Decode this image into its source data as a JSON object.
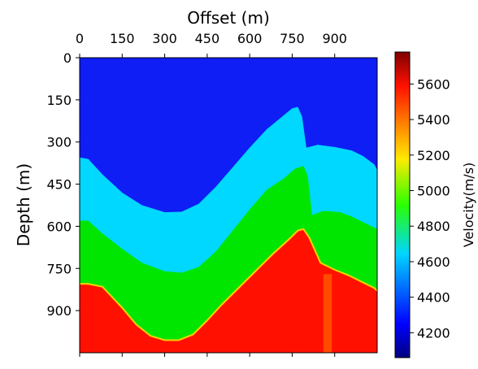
{
  "chart_data": {
    "type": "heatmap",
    "xlabel": "Offset (m)",
    "ylabel": "Depth (m)",
    "x_ticks": [
      0,
      150,
      300,
      450,
      600,
      750,
      900
    ],
    "y_ticks": [
      0,
      150,
      300,
      450,
      600,
      750,
      900
    ],
    "xlim": [
      0,
      1050
    ],
    "ylim": [
      1050,
      0
    ],
    "x_axis_position": "top",
    "colorbar": {
      "label": "Velocity(m/s)",
      "min": 4060,
      "max": 5780,
      "ticks": [
        4200,
        4400,
        4600,
        4800,
        5000,
        5200,
        5400,
        5600
      ],
      "colormap": "jet"
    },
    "layers": [
      {
        "velocity": 4100,
        "color": "#0e1ef5"
      },
      {
        "velocity": 4500,
        "color": "#00d8ff"
      },
      {
        "velocity": 5000,
        "color": "#00e600"
      },
      {
        "velocity": 5750,
        "color": "#ff1000"
      }
    ],
    "interfaces": [
      {
        "x": [
          0,
          30,
          80,
          150,
          220,
          300,
          360,
          420,
          480,
          540,
          600,
          660,
          720,
          750,
          770,
          785,
          800,
          840,
          900,
          960,
          1000,
          1040,
          1050
        ],
        "z": [
          355,
          360,
          415,
          480,
          525,
          550,
          548,
          520,
          460,
          390,
          320,
          255,
          205,
          180,
          175,
          210,
          320,
          310,
          318,
          330,
          350,
          380,
          400
        ]
      },
      {
        "x": [
          0,
          30,
          80,
          150,
          220,
          300,
          360,
          420,
          480,
          540,
          600,
          660,
          720,
          760,
          790,
          805,
          820,
          860,
          920,
          960,
          1000,
          1030,
          1050
        ],
        "z": [
          580,
          580,
          625,
          680,
          730,
          760,
          765,
          745,
          690,
          615,
          540,
          470,
          430,
          395,
          385,
          420,
          560,
          545,
          550,
          565,
          585,
          600,
          610
        ]
      },
      {
        "x": [
          0,
          30,
          80,
          150,
          200,
          250,
          300,
          350,
          400,
          450,
          500,
          560,
          620,
          680,
          740,
          770,
          790,
          810,
          850,
          900,
          950,
          1000,
          1040,
          1050
        ],
        "z": [
          805,
          805,
          815,
          890,
          950,
          990,
          1005,
          1005,
          985,
          935,
          880,
          820,
          760,
          700,
          645,
          615,
          610,
          640,
          730,
          755,
          775,
          800,
          820,
          830
        ]
      }
    ],
    "anomaly": {
      "x": [
        860,
        890
      ],
      "z": [
        770,
        1050
      ],
      "color": "#ff7a00"
    }
  }
}
